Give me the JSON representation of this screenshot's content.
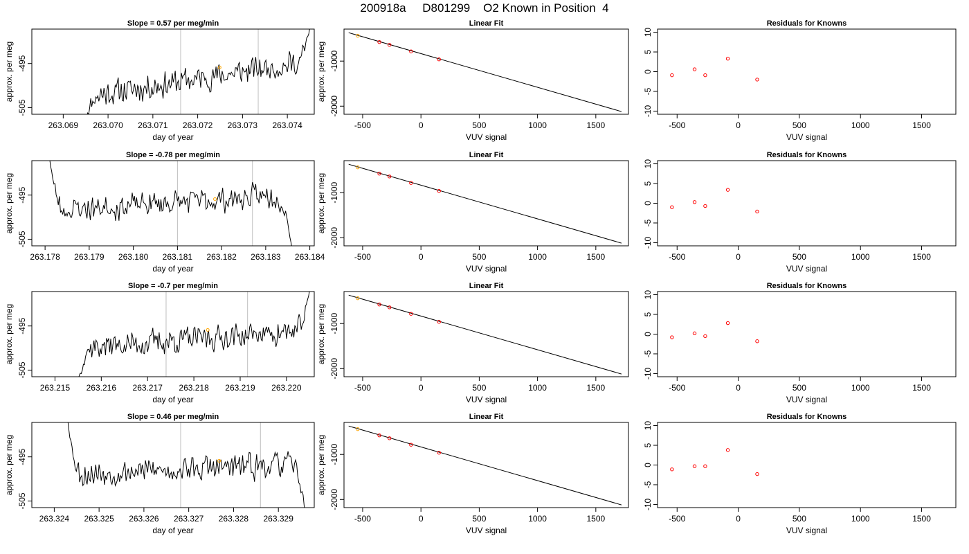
{
  "figure": {
    "title": "200918a     D801299    O2 Known in Position  4"
  },
  "colors": {
    "line": "#000000",
    "vline": "#bebebe",
    "marker_orange": "#ffa500",
    "resid": "#ff0000"
  },
  "chart_data": [
    {
      "type": "line",
      "title": "Slope =  0.57  per meg/min",
      "xlabel": "day of year",
      "ylabel": "approx. per meg",
      "xlim": [
        263.0683,
        263.0746
      ],
      "ylim": [
        -506.5,
        -487.2
      ],
      "xticks": [
        263.069,
        263.07,
        263.071,
        263.072,
        263.073,
        263.074
      ],
      "xtick_labels": [
        "263.069",
        "263.070",
        "263.071",
        "263.072",
        "263.073",
        "263.074"
      ],
      "yticks": [
        -495,
        -505
      ],
      "ytick_labels": [
        "-495",
        "-505"
      ],
      "vlines": [
        263.07162,
        263.07335
      ],
      "highlight_point": {
        "x": 263.07249,
        "y": -495.9
      },
      "trace": {
        "x_start": 263.0695,
        "x_end": 263.0745,
        "y_start": -507.5,
        "y_end": -487.0,
        "mean_start": -502.5,
        "mean_end": -494.5,
        "jitter": 2.2,
        "seed": 11,
        "lead": "up",
        "tail": "up"
      }
    },
    {
      "type": "scatter",
      "title": "Linear Fit",
      "xlabel": "VUV signal",
      "ylabel": "approx. per meg",
      "xlim": [
        -660,
        1780
      ],
      "ylim": [
        -2180,
        -290
      ],
      "xticks": [
        -500,
        0,
        500,
        1000,
        1500
      ],
      "xtick_labels": [
        "-500",
        "0",
        "500",
        "1000",
        "1500"
      ],
      "yticks": [
        -1000,
        -2000
      ],
      "ytick_labels": [
        "-1000",
        "-2000"
      ],
      "fit_line": {
        "x": [
          -620,
          1720
        ],
        "y": [
          -370,
          -2120
        ]
      },
      "points": {
        "x": [
          -542,
          -357,
          -270,
          -85,
          155
        ],
        "y": [
          -438,
          -577,
          -641,
          -785,
          -962
        ]
      },
      "highlight_index": 0
    },
    {
      "type": "scatter",
      "title": "Residuals for Knowns",
      "xlabel": "VUV signal",
      "ylabel": "",
      "xlim": [
        -660,
        1780
      ],
      "ylim": [
        -10.8,
        10.8
      ],
      "xticks": [
        -500,
        0,
        500,
        1000,
        1500
      ],
      "xtick_labels": [
        "-500",
        "0",
        "500",
        "1000",
        "1500"
      ],
      "yticks": [
        10,
        5,
        0,
        -5,
        -10
      ],
      "ytick_labels": [
        "10",
        "5",
        "0",
        "-5",
        "-10"
      ],
      "points": {
        "x": [
          -542,
          -357,
          -270,
          -85,
          155
        ],
        "y": [
          -0.9,
          0.6,
          -0.9,
          3.3,
          -2.0
        ]
      }
    },
    {
      "type": "line",
      "title": "Slope =  -0.78  per meg/min",
      "xlabel": "day of year",
      "ylabel": "approx. per meg",
      "xlim": [
        263.1777,
        263.1841
      ],
      "ylim": [
        -506.5,
        -487.2
      ],
      "xticks": [
        263.178,
        263.179,
        263.18,
        263.181,
        263.182,
        263.183,
        263.184
      ],
      "xtick_labels": [
        "263.178",
        "263.179",
        "263.180",
        "263.181",
        "263.182",
        "263.183",
        "263.184"
      ],
      "yticks": [
        -495,
        -505
      ],
      "ytick_labels": [
        "-495",
        "-505"
      ],
      "vlines": [
        263.181,
        263.1827
      ],
      "highlight_point": {
        "x": 263.18185,
        "y": -495.9
      },
      "trace": {
        "x_start": 263.1781,
        "x_end": 263.1836,
        "y_start": -486.5,
        "y_end": -507.5,
        "mean_start": -498.5,
        "mean_end": -495.0,
        "jitter": 2.2,
        "seed": 23,
        "lead": "down",
        "tail": "down"
      }
    },
    {
      "type": "scatter",
      "title": "Linear Fit",
      "xlabel": "VUV signal",
      "ylabel": "approx. per meg",
      "xlim": [
        -660,
        1780
      ],
      "ylim": [
        -2180,
        -290
      ],
      "xticks": [
        -500,
        0,
        500,
        1000,
        1500
      ],
      "xtick_labels": [
        "-500",
        "0",
        "500",
        "1000",
        "1500"
      ],
      "yticks": [
        -1000,
        -2000
      ],
      "ytick_labels": [
        "-1000",
        "-2000"
      ],
      "fit_line": {
        "x": [
          -620,
          1720
        ],
        "y": [
          -370,
          -2120
        ]
      },
      "points": {
        "x": [
          -542,
          -357,
          -270,
          -85,
          155
        ],
        "y": [
          -438,
          -577,
          -641,
          -785,
          -962
        ]
      },
      "highlight_index": 0
    },
    {
      "type": "scatter",
      "title": "Residuals for Knowns",
      "xlabel": "VUV signal",
      "ylabel": "",
      "xlim": [
        -660,
        1780
      ],
      "ylim": [
        -10.8,
        10.8
      ],
      "xticks": [
        -500,
        0,
        500,
        1000,
        1500
      ],
      "xtick_labels": [
        "-500",
        "0",
        "500",
        "1000",
        "1500"
      ],
      "yticks": [
        10,
        5,
        0,
        -5,
        -10
      ],
      "ytick_labels": [
        "10",
        "5",
        "0",
        "-5",
        "-10"
      ],
      "points": {
        "x": [
          -542,
          -357,
          -270,
          -85,
          155
        ],
        "y": [
          -1.0,
          0.3,
          -0.7,
          3.4,
          -2.1
        ]
      }
    },
    {
      "type": "line",
      "title": "Slope =  -0.7  per meg/min",
      "xlabel": "day of year",
      "ylabel": "approx. per meg",
      "xlim": [
        263.2145,
        263.2206
      ],
      "ylim": [
        -506.5,
        -487.2
      ],
      "xticks": [
        263.215,
        263.216,
        263.217,
        263.218,
        263.219,
        263.22
      ],
      "xtick_labels": [
        "263.215",
        "263.216",
        "263.217",
        "263.218",
        "263.219",
        "263.220"
      ],
      "yticks": [
        -495,
        -505
      ],
      "ytick_labels": [
        "-495",
        "-505"
      ],
      "vlines": [
        263.2174,
        263.21916
      ],
      "highlight_point": {
        "x": 263.2183,
        "y": -495.9
      },
      "trace": {
        "x_start": 263.2155,
        "x_end": 263.2205,
        "y_start": -507.5,
        "y_end": -487.0,
        "mean_start": -500.0,
        "mean_end": -496.0,
        "jitter": 2.2,
        "seed": 37,
        "lead": "up",
        "tail": "up"
      }
    },
    {
      "type": "scatter",
      "title": "Linear Fit",
      "xlabel": "VUV signal",
      "ylabel": "approx. per meg",
      "xlim": [
        -660,
        1780
      ],
      "ylim": [
        -2180,
        -290
      ],
      "xticks": [
        -500,
        0,
        500,
        1000,
        1500
      ],
      "xtick_labels": [
        "-500",
        "0",
        "500",
        "1000",
        "1500"
      ],
      "yticks": [
        -1000,
        -2000
      ],
      "ytick_labels": [
        "-1000",
        "-2000"
      ],
      "fit_line": {
        "x": [
          -620,
          1720
        ],
        "y": [
          -370,
          -2120
        ]
      },
      "points": {
        "x": [
          -542,
          -357,
          -270,
          -85,
          155
        ],
        "y": [
          -438,
          -577,
          -641,
          -785,
          -962
        ]
      },
      "highlight_index": 0
    },
    {
      "type": "scatter",
      "title": "Residuals for Knowns",
      "xlabel": "VUV signal",
      "ylabel": "",
      "xlim": [
        -660,
        1780
      ],
      "ylim": [
        -10.8,
        10.8
      ],
      "xticks": [
        -500,
        0,
        500,
        1000,
        1500
      ],
      "xtick_labels": [
        "-500",
        "0",
        "500",
        "1000",
        "1500"
      ],
      "yticks": [
        10,
        5,
        0,
        -5,
        -10
      ],
      "ytick_labels": [
        "10",
        "5",
        "0",
        "-5",
        "-10"
      ],
      "points": {
        "x": [
          -542,
          -357,
          -270,
          -85,
          155
        ],
        "y": [
          -0.8,
          0.2,
          -0.5,
          2.8,
          -1.8
        ]
      }
    },
    {
      "type": "line",
      "title": "Slope =  0.46  per meg/min",
      "xlabel": "day of year",
      "ylabel": "approx. per meg",
      "xlim": [
        263.3235,
        263.3298
      ],
      "ylim": [
        -506.5,
        -487.2
      ],
      "xticks": [
        263.324,
        263.325,
        263.326,
        263.327,
        263.328,
        263.329
      ],
      "xtick_labels": [
        "263.324",
        "263.325",
        "263.326",
        "263.327",
        "263.328",
        "263.329"
      ],
      "yticks": [
        -495,
        -505
      ],
      "ytick_labels": [
        "-495",
        "-505"
      ],
      "vlines": [
        263.32682,
        263.3286
      ],
      "highlight_point": {
        "x": 263.32768,
        "y": -495.9
      },
      "trace": {
        "x_start": 263.3243,
        "x_end": 263.3296,
        "y_start": -486.5,
        "y_end": -507.5,
        "mean_start": -499.0,
        "mean_end": -496.5,
        "jitter": 2.2,
        "seed": 53,
        "lead": "down",
        "tail": "down"
      }
    },
    {
      "type": "scatter",
      "title": "Linear Fit",
      "xlabel": "VUV signal",
      "ylabel": "approx. per meg",
      "xlim": [
        -660,
        1780
      ],
      "ylim": [
        -2180,
        -290
      ],
      "xticks": [
        -500,
        0,
        500,
        1000,
        1500
      ],
      "xtick_labels": [
        "-500",
        "0",
        "500",
        "1000",
        "1500"
      ],
      "yticks": [
        -1000,
        -2000
      ],
      "ytick_labels": [
        "-1000",
        "-2000"
      ],
      "fit_line": {
        "x": [
          -620,
          1720
        ],
        "y": [
          -370,
          -2120
        ]
      },
      "points": {
        "x": [
          -542,
          -357,
          -270,
          -85,
          155
        ],
        "y": [
          -438,
          -577,
          -641,
          -785,
          -962
        ]
      },
      "highlight_index": 0
    },
    {
      "type": "scatter",
      "title": "Residuals for Knowns",
      "xlabel": "VUV signal",
      "ylabel": "",
      "xlim": [
        -660,
        1780
      ],
      "ylim": [
        -10.8,
        10.8
      ],
      "xticks": [
        -500,
        0,
        500,
        1000,
        1500
      ],
      "xtick_labels": [
        "-500",
        "0",
        "500",
        "1000",
        "1500"
      ],
      "yticks": [
        10,
        5,
        0,
        -5,
        -10
      ],
      "ytick_labels": [
        "10",
        "5",
        "0",
        "-5",
        "-10"
      ],
      "points": {
        "x": [
          -542,
          -357,
          -270,
          -85,
          155
        ],
        "y": [
          -1.1,
          -0.3,
          -0.3,
          3.8,
          -2.3
        ]
      }
    }
  ]
}
